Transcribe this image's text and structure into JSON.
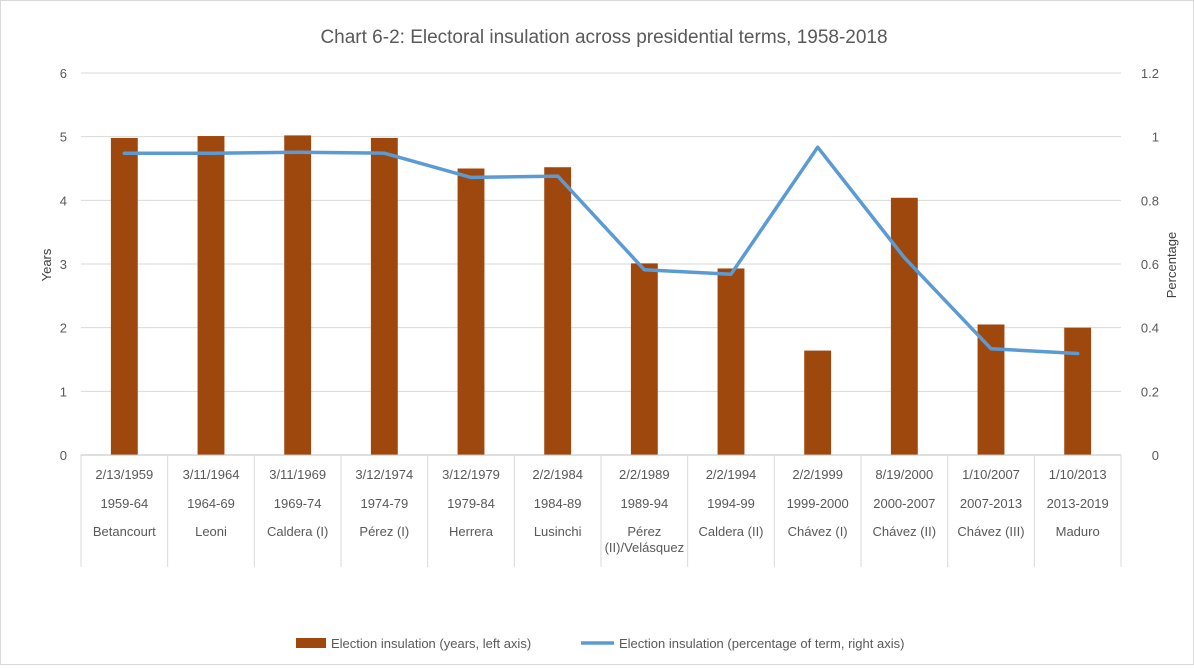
{
  "chart_data": {
    "type": "bar+line",
    "title": "Chart  6-2: Electoral insulation across presidential terms, 1958-2018",
    "ylabel_left": "Years",
    "ylabel_right": "Percentage",
    "ylim_left": [
      0,
      6
    ],
    "ylim_right": [
      0,
      1.2
    ],
    "yticks_left": [
      "0",
      "1",
      "2",
      "3",
      "4",
      "5",
      "6"
    ],
    "yticks_right": [
      "0",
      "0.2",
      "0.4",
      "0.6",
      "0.8",
      "1",
      "1.2"
    ],
    "grid": true,
    "legend_position": "bottom",
    "categories": [
      {
        "date": "2/13/1959",
        "period": "1959-64",
        "president": [
          "Betancourt"
        ]
      },
      {
        "date": "3/11/1964",
        "period": "1964-69",
        "president": [
          "Leoni"
        ]
      },
      {
        "date": "3/11/1969",
        "period": "1969-74",
        "president": [
          "Caldera (I)"
        ]
      },
      {
        "date": "3/12/1974",
        "period": "1974-79",
        "president": [
          "Pérez (I)"
        ]
      },
      {
        "date": "3/12/1979",
        "period": "1979-84",
        "president": [
          "Herrera"
        ]
      },
      {
        "date": "2/2/1984",
        "period": "1984-89",
        "president": [
          "Lusinchi"
        ]
      },
      {
        "date": "2/2/1989",
        "period": "1989-94",
        "president": [
          "Pérez",
          "(II)/Velásquez"
        ]
      },
      {
        "date": "2/2/1994",
        "period": "1994-99",
        "president": [
          "Caldera (II)"
        ]
      },
      {
        "date": "2/2/1999",
        "period": "1999-2000",
        "president": [
          "Chávez (I)"
        ]
      },
      {
        "date": "8/19/2000",
        "period": "2000-2007",
        "president": [
          "Chávez (II)"
        ]
      },
      {
        "date": "1/10/2007",
        "period": "2007-2013",
        "president": [
          "Chávez (III)"
        ]
      },
      {
        "date": "1/10/2013",
        "period": "2013-2019",
        "president": [
          "Maduro"
        ]
      }
    ],
    "series": [
      {
        "name": "Election insulation (years, left  axis)",
        "type": "bar",
        "axis": "left",
        "color": "#9E480E",
        "values": [
          4.98,
          5.01,
          5.02,
          4.98,
          4.5,
          4.52,
          3.01,
          2.93,
          1.64,
          4.04,
          2.05,
          2.0
        ]
      },
      {
        "name": "Election insulation (percentage of term, right  axis)",
        "type": "line",
        "axis": "right",
        "color": "#5B9BD5",
        "values": [
          0.948,
          0.948,
          0.951,
          0.948,
          0.872,
          0.876,
          0.582,
          0.568,
          0.967,
          0.62,
          0.334,
          0.319
        ]
      }
    ]
  }
}
